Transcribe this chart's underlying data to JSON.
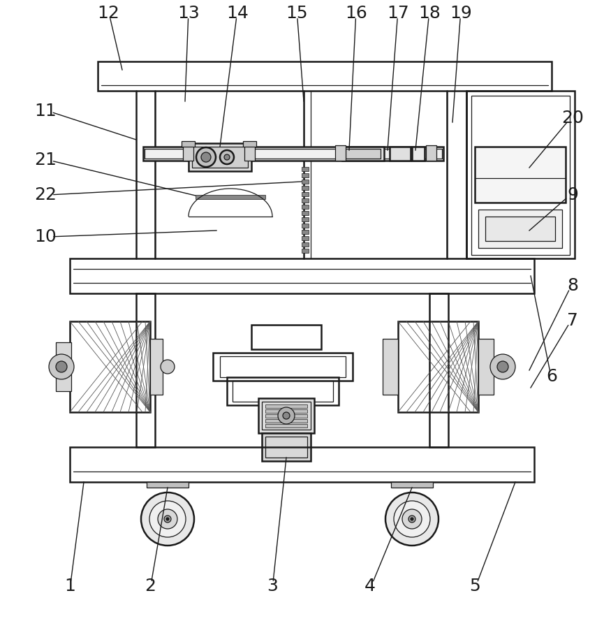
{
  "bg_color": "#ffffff",
  "lc": "#1a1a1a",
  "lw": 1.8,
  "tlw": 0.9,
  "figsize": [
    8.65,
    8.89
  ],
  "dpi": 100
}
